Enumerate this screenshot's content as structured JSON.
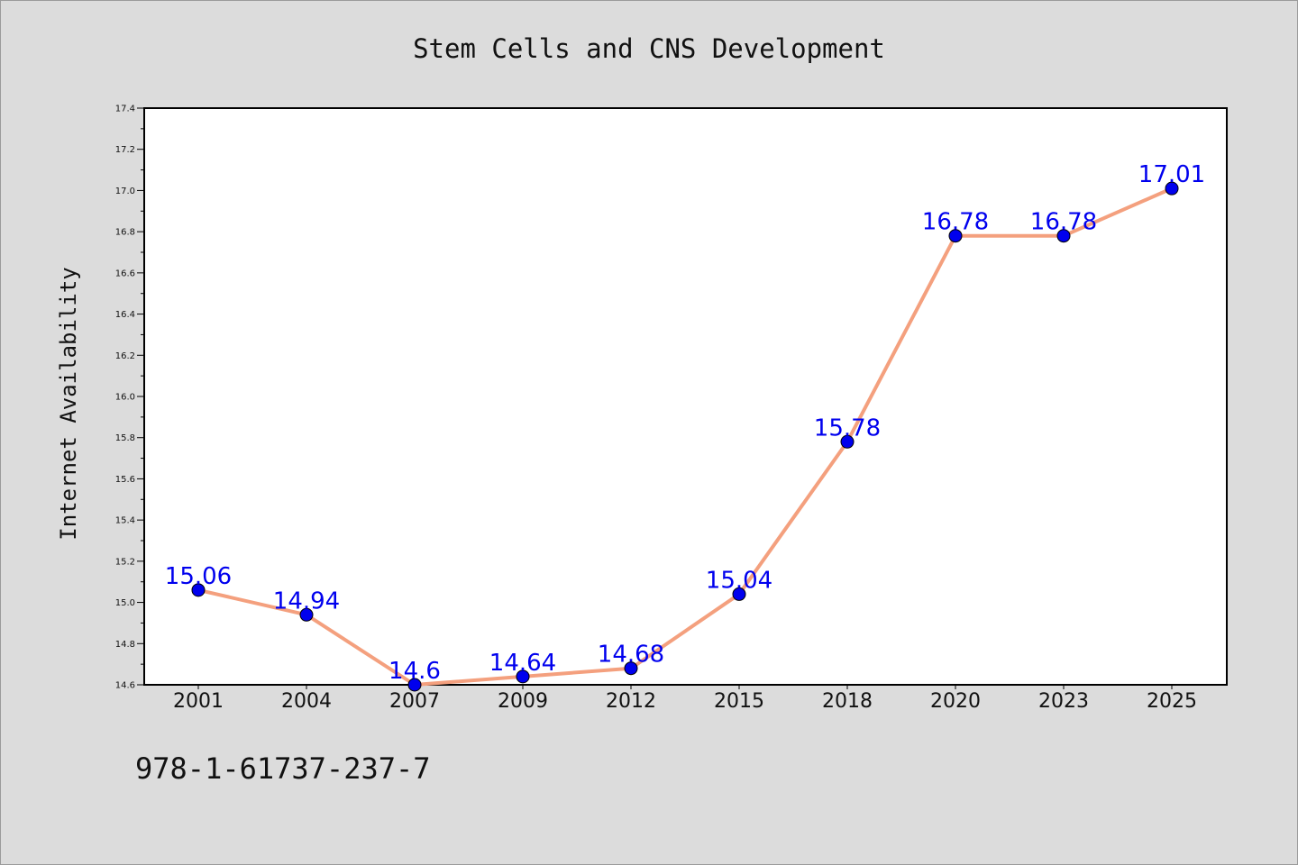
{
  "chart_data": {
    "type": "line",
    "title": "Stem Cells and CNS Development",
    "xlabel": "",
    "ylabel": "Internet Availability",
    "categories": [
      "2001",
      "2004",
      "2007",
      "2009",
      "2012",
      "2015",
      "2018",
      "2020",
      "2023",
      "2025"
    ],
    "series": [
      {
        "values": [
          15.06,
          14.94,
          14.6,
          14.64,
          14.68,
          15.04,
          15.78,
          16.78,
          16.78,
          17.01
        ],
        "data_labels": [
          "15.06",
          "14.94",
          "14.6",
          "14.64",
          "14.68",
          "15.04",
          "15.78",
          "16.78",
          "16.78",
          "17.01"
        ]
      }
    ],
    "ylim": [
      14.6,
      17.4
    ],
    "yticks": [
      "14.6",
      "14.8",
      "15.0",
      "15.2",
      "15.4",
      "15.6",
      "15.8",
      "16.0",
      "16.2",
      "16.4",
      "16.6",
      "16.8",
      "17.0",
      "17.2",
      "17.4"
    ],
    "grid": false,
    "legend": "none",
    "line_color": "#f4a07e",
    "marker_color": "#0000ee",
    "label_color": "#0000ee"
  },
  "footer_text": "978-1-61737-237-7"
}
